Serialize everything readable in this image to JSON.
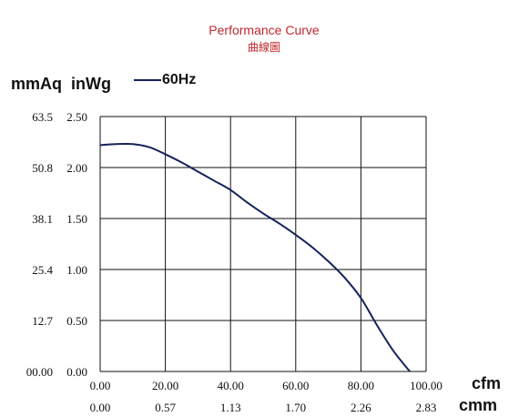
{
  "chart_data": {
    "type": "line",
    "title": "Performance Curve",
    "subtitle": "曲線圖",
    "ylabel_primary": "mmAq",
    "ylabel_secondary": "inWg",
    "xlabel_primary": "cfm",
    "xlabel_secondary": "cmm",
    "x_ticks": [
      "0.00",
      "20.00",
      "40.00",
      "60.00",
      "80.00",
      "100.00"
    ],
    "x_ticks_secondary": [
      "0.00",
      "0.57",
      "1.13",
      "1.70",
      "2.26",
      "2.83"
    ],
    "y_ticks": [
      "0.00",
      "0.50",
      "1.00",
      "1.50",
      "2.00",
      "2.50"
    ],
    "y_ticks_secondary": [
      "00.00",
      "12.7",
      "25.4",
      "38.1",
      "50.8",
      "63.5"
    ],
    "xlim": [
      0,
      100
    ],
    "ylim": [
      0,
      2.5
    ],
    "grid": true,
    "legend_position": "top-left",
    "series": [
      {
        "name": "60Hz",
        "color": "#14235a",
        "x": [
          0,
          5,
          10,
          15,
          20,
          25,
          30,
          35,
          40,
          45,
          50,
          55,
          60,
          65,
          70,
          75,
          80,
          85,
          90,
          95
        ],
        "y": [
          2.22,
          2.23,
          2.23,
          2.2,
          2.13,
          2.05,
          1.96,
          1.87,
          1.78,
          1.66,
          1.55,
          1.45,
          1.34,
          1.22,
          1.08,
          0.92,
          0.72,
          0.45,
          0.2,
          0.0
        ]
      }
    ]
  }
}
